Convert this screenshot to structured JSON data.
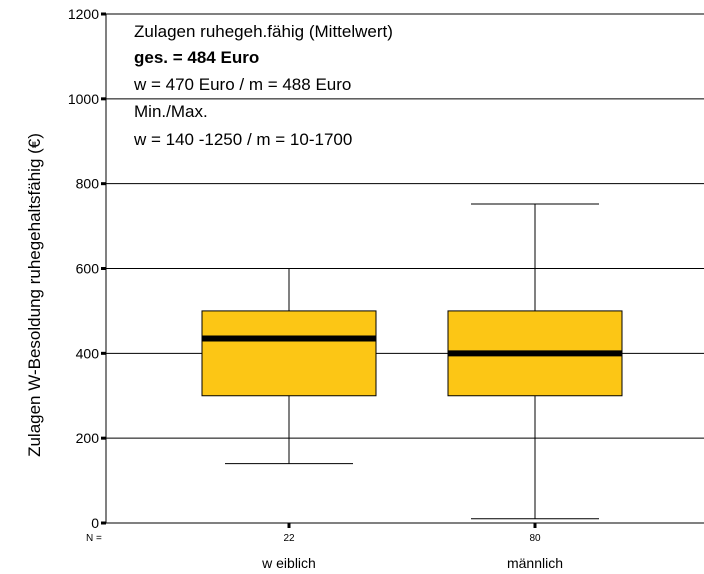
{
  "chart_data": {
    "type": "box",
    "ylabel": "Zulagen W-Besoldung ruhegehaltsfähig (€)",
    "ylim": [
      0,
      1200
    ],
    "yticks": [
      0,
      200,
      400,
      600,
      800,
      1000,
      1200
    ],
    "grid": true,
    "n_label": "N =",
    "categories": [
      "w eiblich",
      "männlich"
    ],
    "counts": [
      "22",
      "80"
    ],
    "boxes": [
      {
        "whisker_low": 140,
        "q1": 300,
        "median": 435,
        "q3": 500,
        "whisker_high": 600
      },
      {
        "whisker_low": 10,
        "q1": 300,
        "median": 400,
        "q3": 500,
        "whisker_high": 752
      }
    ],
    "annotation": {
      "line1": "Zulagen ruhegeh.fähig (Mittelwert)",
      "line2": "ges. = 484 Euro",
      "line3": "w = 470 Euro / m = 488 Euro",
      "line4": "Min./Max.",
      "line5": "w = 140 -1250 / m = 10-1700"
    },
    "colors": {
      "box_fill": "#FCC615",
      "median": "#000000",
      "grid": "#000000"
    }
  }
}
